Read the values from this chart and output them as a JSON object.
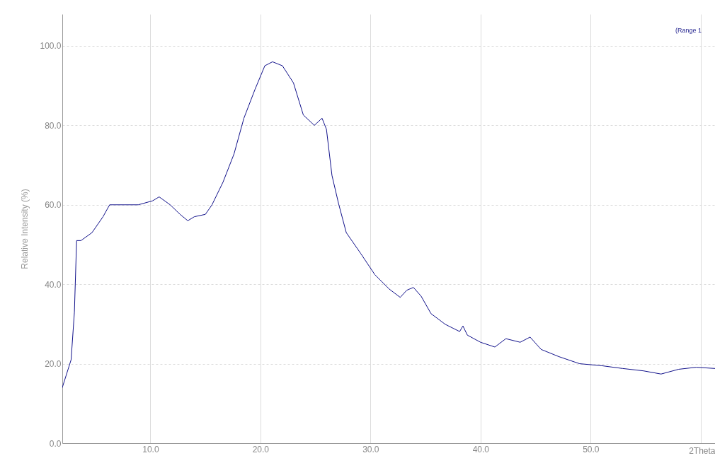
{
  "chart_data": {
    "type": "line",
    "ylabel": "Relative Intensity (%)",
    "xlabel": "2Theta",
    "xlim": [
      2,
      61.3
    ],
    "ylim": [
      0,
      108
    ],
    "xticks": [
      {
        "value": 10,
        "label": "10.0"
      },
      {
        "value": 20,
        "label": "20.0"
      },
      {
        "value": 30,
        "label": "30.0"
      },
      {
        "value": 40,
        "label": "40.0"
      },
      {
        "value": 50,
        "label": "50.0"
      },
      {
        "value": 60,
        "label": null
      }
    ],
    "yticks": [
      {
        "value": 0,
        "label": "0.0"
      },
      {
        "value": 20,
        "label": "20.0"
      },
      {
        "value": 40,
        "label": "40.0"
      },
      {
        "value": 60,
        "label": "60.0"
      },
      {
        "value": 80,
        "label": "80.0"
      },
      {
        "value": 100,
        "label": "100.0"
      }
    ],
    "grid": true,
    "legend": "top right",
    "series": [
      {
        "name": "(Range 1",
        "color": "#10108a",
        "x": [
          2.0,
          2.8,
          3.1,
          3.3,
          3.7,
          4.7,
          5.7,
          6.3,
          7.6,
          8.9,
          10.2,
          10.8,
          11.8,
          12.7,
          13.4,
          14.0,
          15.0,
          15.6,
          16.6,
          17.6,
          18.5,
          19.5,
          20.4,
          21.1,
          22.0,
          23.0,
          23.9,
          24.9,
          25.6,
          26.0,
          26.5,
          27.1,
          27.8,
          29.1,
          30.4,
          31.7,
          32.7,
          33.3,
          33.9,
          34.6,
          35.5,
          36.8,
          38.1,
          38.4,
          38.8,
          40.0,
          41.3,
          42.3,
          43.6,
          44.5,
          45.5,
          47.1,
          49.0,
          51.0,
          52.9,
          54.8,
          56.4,
          58.0,
          59.6,
          61.3
        ],
        "values": [
          14,
          21,
          33,
          51,
          51,
          53,
          57,
          60,
          60,
          60,
          61,
          62,
          60,
          57.6,
          56,
          57,
          57.6,
          60,
          65.7,
          72.8,
          81.8,
          89,
          95,
          96,
          95,
          90.7,
          82.6,
          80,
          81.8,
          79,
          67.4,
          60.3,
          53,
          47.8,
          42.4,
          38.8,
          36.7,
          38.5,
          39.2,
          37,
          32.6,
          29.9,
          28.1,
          29.5,
          27.2,
          25.4,
          24.2,
          26.3,
          25.4,
          26.7,
          23.6,
          21.8,
          20.0,
          19.5,
          18.8,
          18.2,
          17.4,
          18.6,
          19.1,
          18.8
        ]
      }
    ]
  }
}
